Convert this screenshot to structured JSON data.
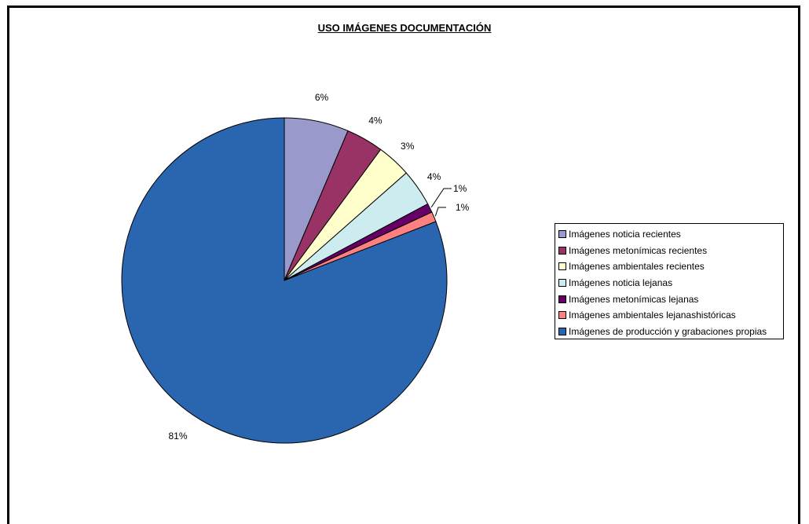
{
  "chart_data": {
    "type": "pie",
    "title": "USO IMÁGENES DOCUMENTACIÓN",
    "slices": [
      {
        "name": "Imágenes noticia recientes",
        "value": 6.4,
        "label": "6%",
        "color": "#9999cc"
      },
      {
        "name": "Imágenes metonímicas recientes",
        "value": 3.7,
        "label": "4%",
        "color": "#993366"
      },
      {
        "name": "Imágenes ambientales recientes",
        "value": 3.4,
        "label": "3%",
        "color": "#ffffcc"
      },
      {
        "name": "Imágenes noticia lejanas",
        "value": 3.7,
        "label": "4%",
        "color": "#ccecf0"
      },
      {
        "name": "Imágenes metonímicas lejanas",
        "value": 0.9,
        "label": "1%",
        "color": "#660066"
      },
      {
        "name": "Imágenes ambientales lejanashistóricas",
        "value": 1.0,
        "label": "1%",
        "color": "#ff8080"
      },
      {
        "name": "Imágenes de producción y grabaciones propias",
        "value": 80.9,
        "label": "81%",
        "color": "#2a65b0"
      }
    ],
    "start_angle": "12 o'clock",
    "direction": "clockwise",
    "legend_position": "right"
  }
}
